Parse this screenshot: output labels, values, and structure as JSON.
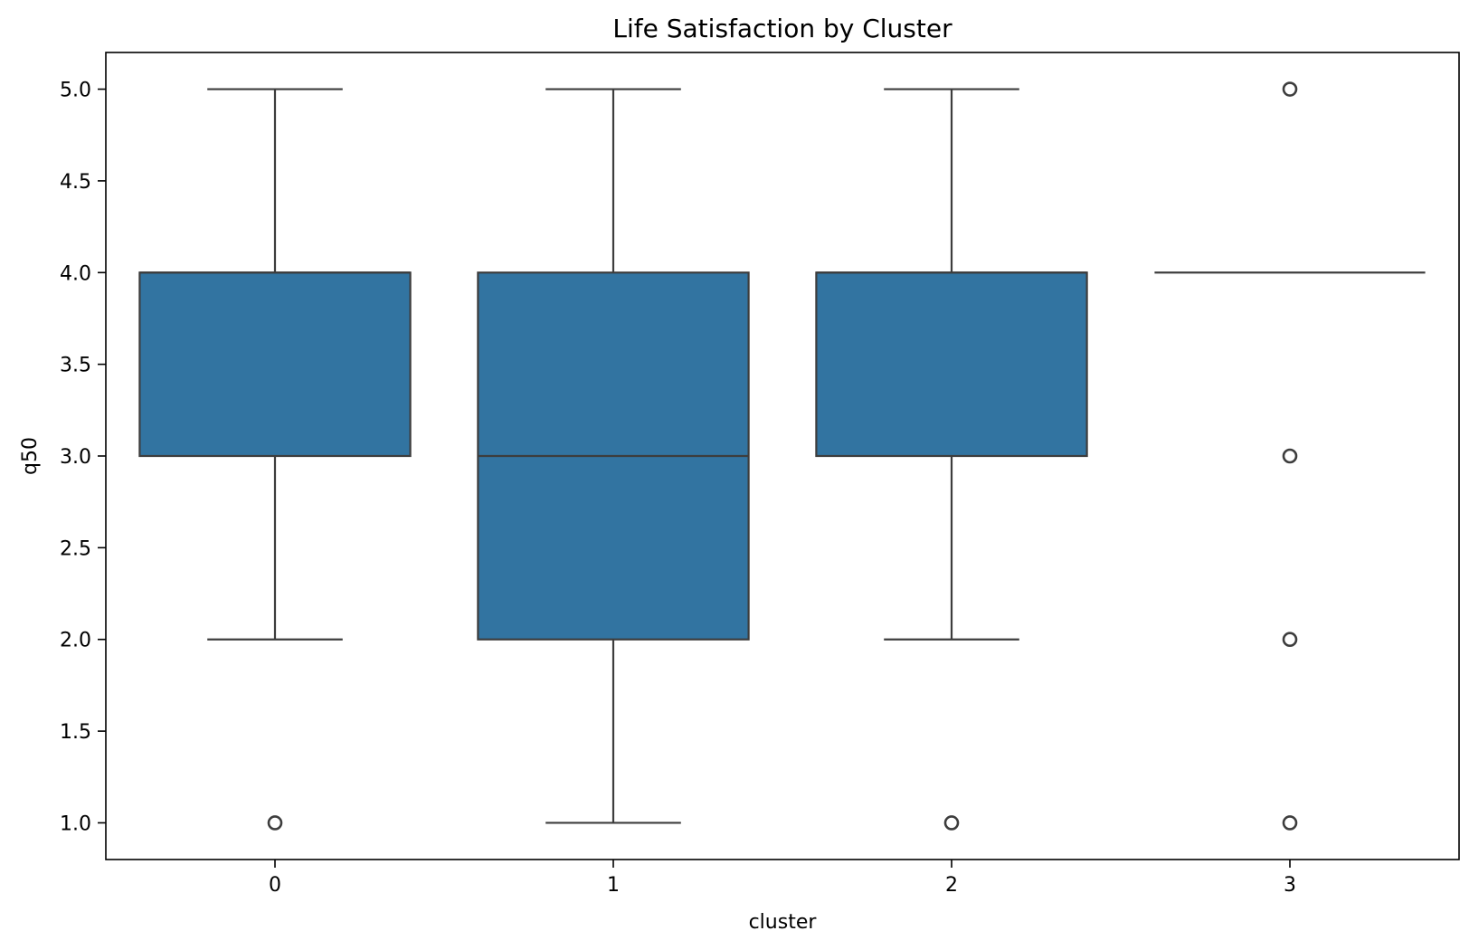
{
  "chart_data": {
    "type": "box",
    "title": "Life Satisfaction by Cluster",
    "xlabel": "cluster",
    "ylabel": "q50",
    "categories": [
      "0",
      "1",
      "2",
      "3"
    ],
    "ylim": [
      0.8,
      5.2
    ],
    "yticks": [
      1.0,
      1.5,
      2.0,
      2.5,
      3.0,
      3.5,
      4.0,
      4.5,
      5.0
    ],
    "ytick_labels": [
      "1.0",
      "1.5",
      "2.0",
      "2.5",
      "3.0",
      "3.5",
      "4.0",
      "4.5",
      "5.0"
    ],
    "grid": false,
    "box_color": "#3274a1",
    "line_color": "#3d3d3d",
    "boxes": [
      {
        "category": "0",
        "whisker_low": 2.0,
        "q1": 3.0,
        "median": 4.0,
        "q3": 4.0,
        "whisker_high": 5.0,
        "outliers": [
          1.0
        ]
      },
      {
        "category": "1",
        "whisker_low": 1.0,
        "q1": 2.0,
        "median": 3.0,
        "q3": 4.0,
        "whisker_high": 5.0,
        "outliers": []
      },
      {
        "category": "2",
        "whisker_low": 2.0,
        "q1": 3.0,
        "median": 4.0,
        "q3": 4.0,
        "whisker_high": 5.0,
        "outliers": [
          1.0
        ]
      },
      {
        "category": "3",
        "whisker_low": 4.0,
        "q1": 4.0,
        "median": 4.0,
        "q3": 4.0,
        "whisker_high": 4.0,
        "outliers": [
          5.0,
          3.0,
          2.0,
          1.0
        ]
      }
    ]
  }
}
